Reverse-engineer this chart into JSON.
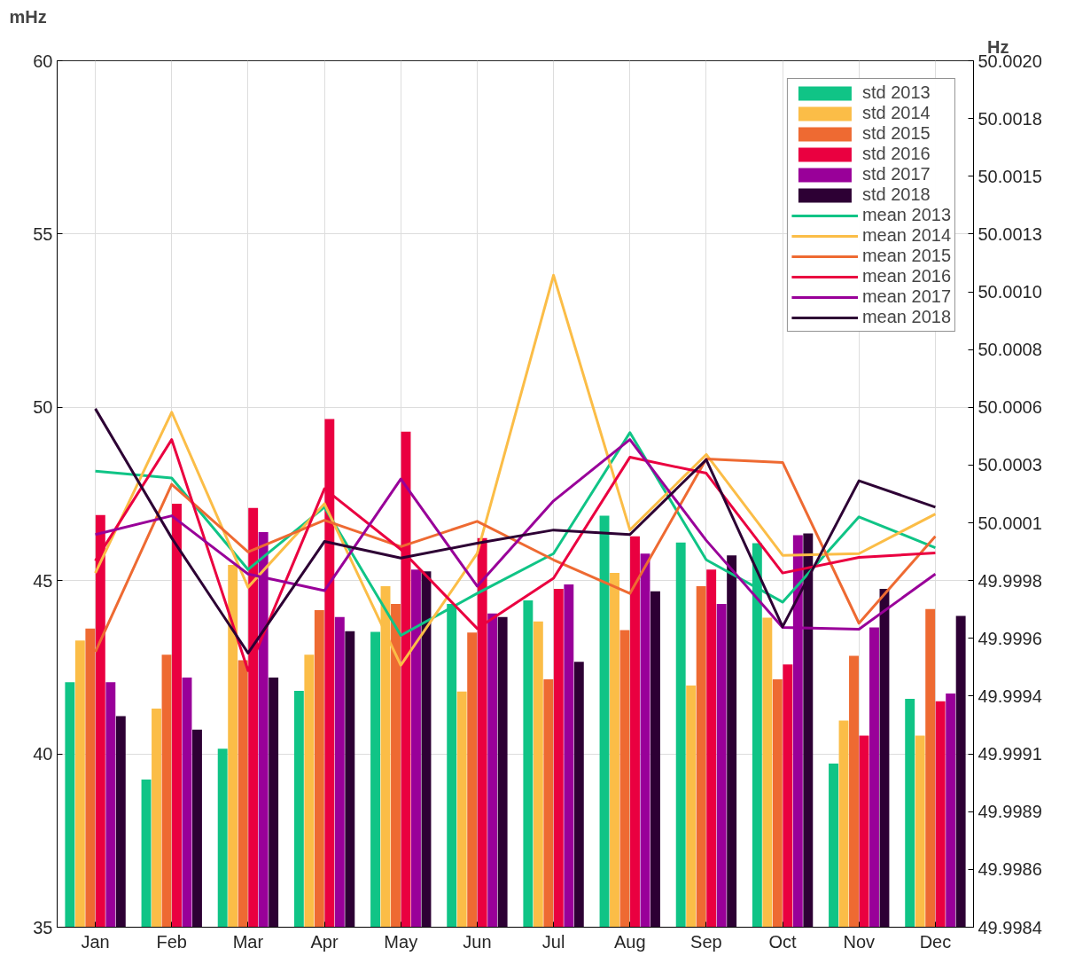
{
  "chart_data": {
    "type": "bar",
    "ylabel": "mHz",
    "y2label": "Hz",
    "categories": [
      "Jan",
      "Feb",
      "Mar",
      "Apr",
      "May",
      "Jun",
      "Jul",
      "Aug",
      "Sep",
      "Oct",
      "Nov",
      "Dec"
    ],
    "ylim": [
      35,
      60
    ],
    "yticks": [
      35,
      40,
      45,
      50,
      55,
      60
    ],
    "y2lim": [
      49.9984,
      50.002
    ],
    "y2ticks": [
      {
        "value": 49.9984,
        "label": "49.9984"
      },
      {
        "value": 49.99864,
        "label": "49.9986"
      },
      {
        "value": 49.99888,
        "label": "49.9989"
      },
      {
        "value": 49.99912,
        "label": "49.9991"
      },
      {
        "value": 49.99936,
        "label": "49.9994"
      },
      {
        "value": 49.9996,
        "label": "49.9996"
      },
      {
        "value": 49.99984,
        "label": "49.9998"
      },
      {
        "value": 50.00008,
        "label": "50.0001"
      },
      {
        "value": 50.00032,
        "label": "50.0003"
      },
      {
        "value": 50.00056,
        "label": "50.0006"
      },
      {
        "value": 50.0008,
        "label": "50.0008"
      },
      {
        "value": 50.00104,
        "label": "50.0010"
      },
      {
        "value": 50.00128,
        "label": "50.0013"
      },
      {
        "value": 50.00152,
        "label": "50.0015"
      },
      {
        "value": 50.00176,
        "label": "50.0018"
      },
      {
        "value": 50.002,
        "label": "50.0020"
      }
    ],
    "grid": true,
    "legend": "top right",
    "series": [
      {
        "name": "std 2013",
        "color": "#10c486",
        "values": [
          42.07,
          39.26,
          40.15,
          41.82,
          43.52,
          44.33,
          44.43,
          46.87,
          46.1,
          46.08,
          39.72,
          41.59
        ]
      },
      {
        "name": "std 2014",
        "color": "#fbbd47",
        "values": [
          43.27,
          41.31,
          45.45,
          42.86,
          44.84,
          41.8,
          43.82,
          45.22,
          41.97,
          43.93,
          40.96,
          40.53
        ]
      },
      {
        "name": "std 2015",
        "color": "#ee6a32",
        "values": [
          43.62,
          42.86,
          42.7,
          44.15,
          44.33,
          43.5,
          42.15,
          43.57,
          44.84,
          42.15,
          42.83,
          44.18
        ]
      },
      {
        "name": "std 2016",
        "color": "#ea0040",
        "values": [
          46.89,
          47.22,
          47.1,
          49.66,
          49.3,
          46.23,
          44.76,
          46.28,
          45.32,
          42.58,
          40.53,
          41.52
        ]
      },
      {
        "name": "std 2017",
        "color": "#990099",
        "values": [
          42.07,
          42.2,
          46.4,
          43.95,
          45.32,
          44.05,
          44.89,
          45.78,
          44.33,
          46.31,
          43.65,
          41.74
        ]
      },
      {
        "name": "std 2018",
        "color": "#2d0034",
        "values": [
          41.09,
          40.7,
          42.2,
          43.54,
          45.27,
          43.95,
          42.66,
          44.69,
          45.73,
          46.36,
          44.76,
          43.98
        ]
      },
      {
        "type": "line",
        "name": "mean 2013",
        "color": "#10c486",
        "values": [
          48.16,
          47.96,
          45.32,
          47.12,
          43.42,
          44.63,
          45.78,
          49.27,
          45.6,
          44.38,
          46.84,
          45.95
        ]
      },
      {
        "type": "line",
        "name": "mean 2014",
        "color": "#fbbd47",
        "values": [
          45.22,
          49.86,
          44.81,
          47.22,
          42.56,
          45.78,
          53.81,
          46.46,
          48.64,
          45.73,
          45.78,
          46.92
        ]
      },
      {
        "type": "line",
        "name": "mean 2015",
        "color": "#ee6a32",
        "values": [
          42.94,
          47.78,
          45.83,
          46.74,
          45.98,
          46.71,
          45.6,
          44.63,
          48.51,
          48.41,
          43.77,
          46.28
        ]
      },
      {
        "type": "line",
        "name": "mean 2016",
        "color": "#ea0040",
        "values": [
          45.57,
          49.07,
          42.4,
          47.65,
          45.9,
          43.62,
          45.07,
          48.56,
          48.1,
          45.22,
          45.67,
          45.8
        ]
      },
      {
        "type": "line",
        "name": "mean 2017",
        "color": "#990099",
        "values": [
          46.33,
          46.87,
          45.19,
          44.71,
          47.93,
          44.84,
          47.3,
          49.07,
          46.16,
          43.65,
          43.6,
          45.19
        ]
      },
      {
        "type": "line",
        "name": "mean 2018",
        "color": "#2d0034",
        "values": [
          49.96,
          46.23,
          42.91,
          46.13,
          45.65,
          46.08,
          46.46,
          46.33,
          48.49,
          43.67,
          47.88,
          47.12
        ]
      }
    ]
  }
}
